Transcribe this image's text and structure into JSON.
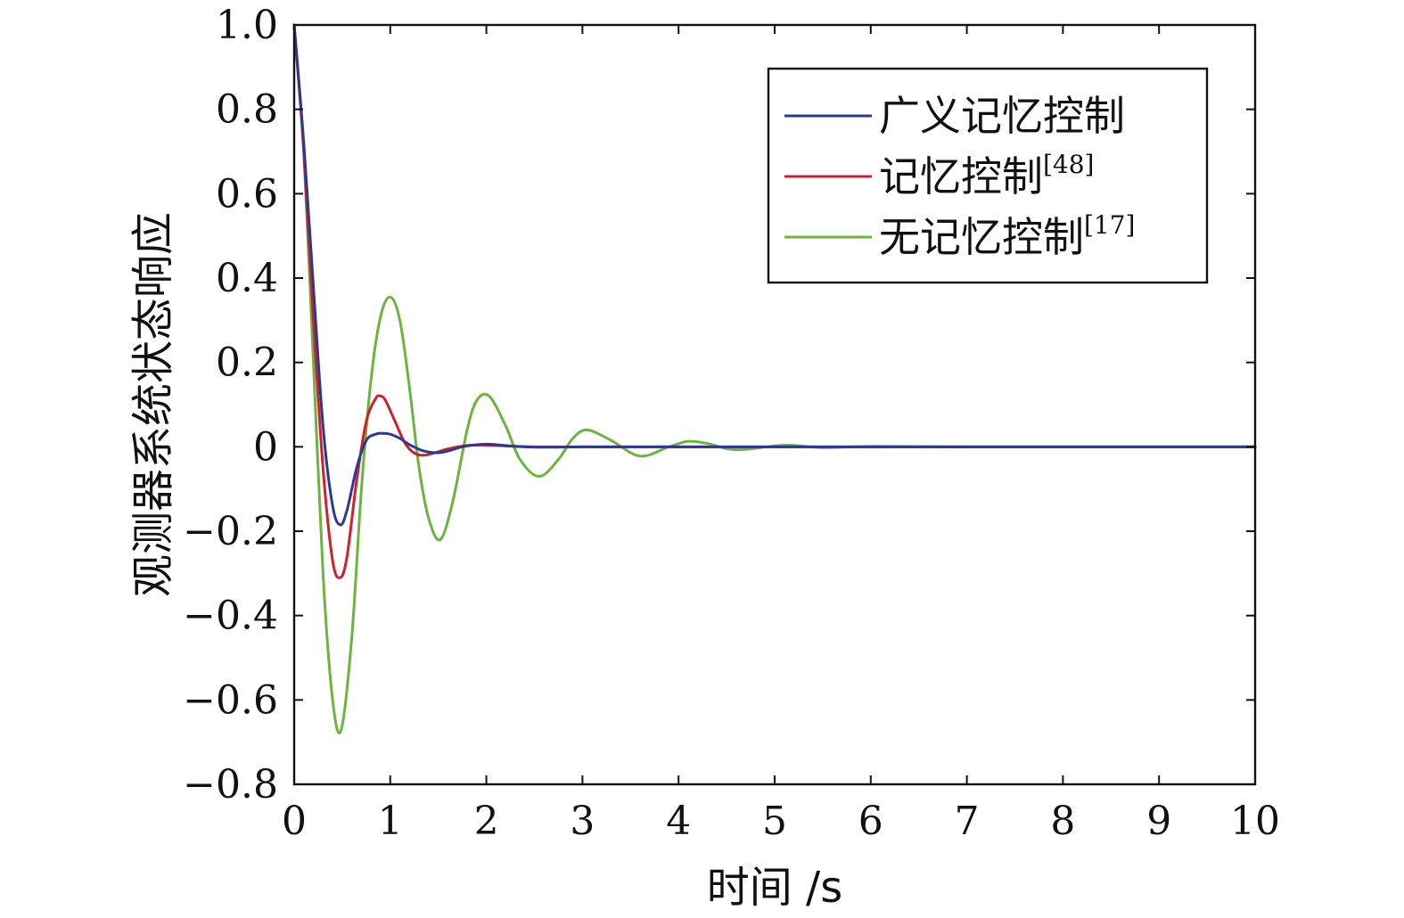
{
  "chart_data": {
    "type": "line",
    "title": "",
    "xlabel": "时间 /s",
    "ylabel": "观测器系统状态响应",
    "xlim": [
      0,
      10
    ],
    "ylim": [
      -0.8,
      1.0
    ],
    "x_ticks": [
      0,
      1,
      2,
      3,
      4,
      5,
      6,
      7,
      8,
      9,
      10
    ],
    "y_ticks": [
      1.0,
      0.8,
      0.6,
      0.4,
      0.2,
      0,
      -0.2,
      -0.4,
      -0.6,
      -0.8
    ],
    "y_tick_labels": [
      "1.0",
      "0.8",
      "0.6",
      "0.4",
      "0.2",
      "0",
      "−0.2",
      "−0.4",
      "−0.6",
      "−0.8"
    ],
    "x_tick_labels": [
      "0",
      "1",
      "2",
      "3",
      "4",
      "5",
      "6",
      "7",
      "8",
      "9",
      "10"
    ],
    "grid": false,
    "legend_position": "top-right",
    "series": [
      {
        "name": "广义记忆控制",
        "name_sup": "",
        "color": "#2b3a8f",
        "x": [
          0,
          0.1,
          0.2,
          0.3,
          0.4,
          0.48,
          0.55,
          0.65,
          0.75,
          0.85,
          0.92,
          1.0,
          1.1,
          1.2,
          1.35,
          1.5,
          1.6,
          1.75,
          1.9,
          2.05,
          2.2,
          2.4,
          2.7,
          3.0,
          4.0,
          6.0,
          10.0
        ],
        "y": [
          1.0,
          0.72,
          0.38,
          0.05,
          -0.14,
          -0.185,
          -0.15,
          -0.05,
          0.015,
          0.03,
          0.032,
          0.03,
          0.02,
          0.005,
          -0.01,
          -0.014,
          -0.01,
          0.0,
          0.005,
          0.006,
          0.003,
          0.0,
          -0.001,
          0.0,
          0.0,
          0.0,
          0.0
        ]
      },
      {
        "name": "记忆控制",
        "name_sup": "[48]",
        "color": "#d0202e",
        "x": [
          0,
          0.1,
          0.2,
          0.3,
          0.4,
          0.48,
          0.55,
          0.65,
          0.75,
          0.85,
          0.9,
          0.95,
          1.05,
          1.15,
          1.25,
          1.35,
          1.45,
          1.6,
          1.8,
          2.0,
          2.2,
          2.5,
          3.0,
          4.0,
          6.0,
          10.0
        ],
        "y": [
          1.0,
          0.7,
          0.3,
          -0.05,
          -0.27,
          -0.31,
          -0.26,
          -0.08,
          0.06,
          0.115,
          0.12,
          0.11,
          0.06,
          0.01,
          -0.015,
          -0.02,
          -0.015,
          -0.005,
          0.003,
          0.004,
          0.002,
          0.0,
          0.0,
          0.0,
          0.0,
          0.0
        ]
      },
      {
        "name": "无记忆控制",
        "name_sup": "[17]",
        "color": "#6db33f",
        "x": [
          0,
          0.1,
          0.2,
          0.3,
          0.4,
          0.49,
          0.6,
          0.7,
          0.8,
          0.9,
          1.0,
          1.1,
          1.2,
          1.3,
          1.4,
          1.52,
          1.65,
          1.8,
          1.9,
          2.03,
          2.2,
          2.35,
          2.55,
          2.75,
          2.9,
          3.05,
          3.3,
          3.6,
          3.9,
          4.1,
          4.3,
          4.6,
          5.1,
          5.5,
          6.0,
          7.0,
          10.0
        ],
        "y": [
          1.0,
          0.7,
          0.2,
          -0.3,
          -0.6,
          -0.67,
          -0.45,
          -0.1,
          0.16,
          0.31,
          0.355,
          0.3,
          0.14,
          -0.05,
          -0.17,
          -0.22,
          -0.13,
          0.04,
          0.11,
          0.12,
          0.05,
          -0.03,
          -0.07,
          -0.03,
          0.02,
          0.04,
          0.015,
          -0.022,
          0.0,
          0.013,
          0.008,
          -0.007,
          0.004,
          -0.002,
          0.001,
          0.0,
          0.0
        ]
      }
    ]
  }
}
